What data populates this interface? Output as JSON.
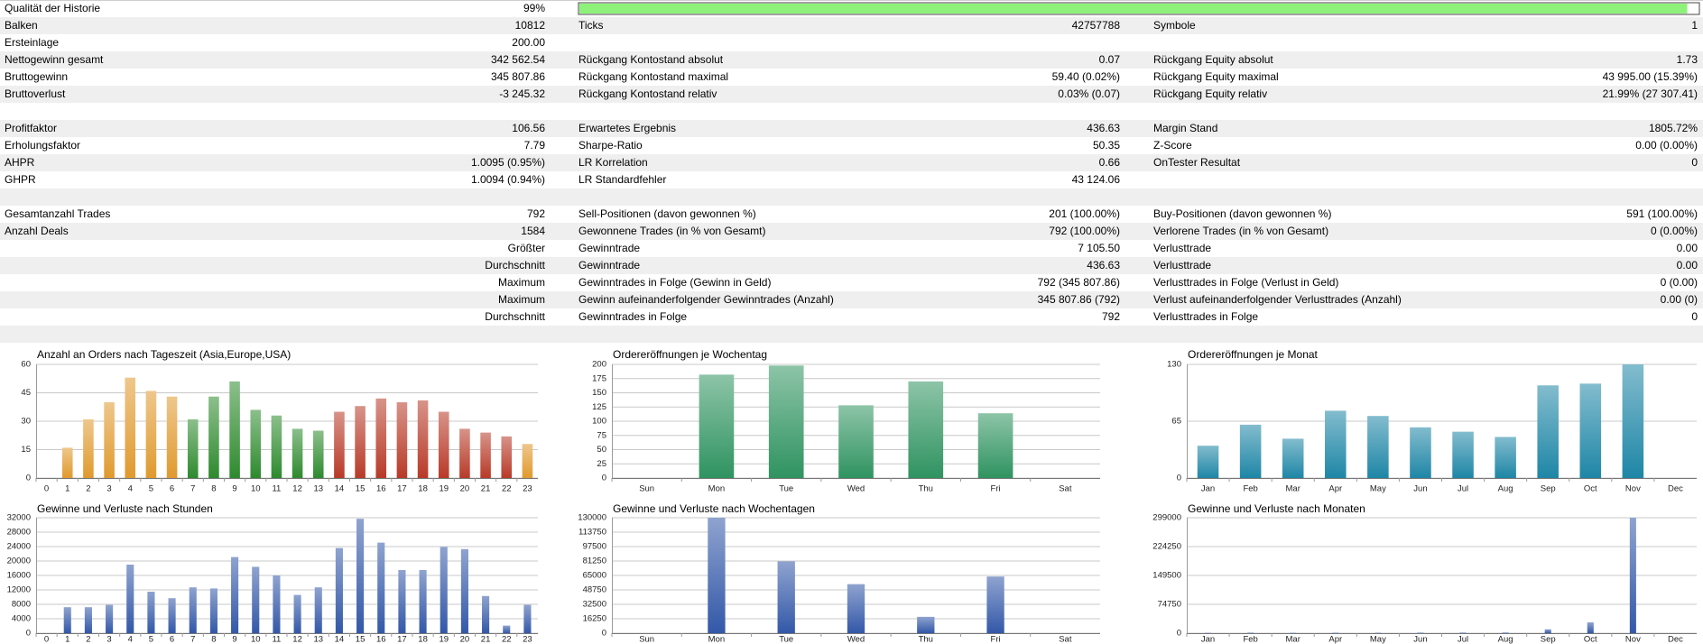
{
  "table": {
    "rows": [
      {
        "label": "Qualität der Historie",
        "value": "99%",
        "bar": 99
      },
      {
        "label": "Balken",
        "value": "10812",
        "label2": "Ticks",
        "value2": "42757788",
        "label3": "Symbole",
        "value3": "1"
      },
      {
        "label": "Ersteinlage",
        "value": "200.00"
      },
      {
        "label": "Nettogewinn gesamt",
        "value": "342 562.54",
        "label2": "Rückgang Kontostand absolut",
        "value2": "0.07",
        "label3": "Rückgang Equity absolut",
        "value3": "1.73"
      },
      {
        "label": "Bruttogewinn",
        "value": "345 807.86",
        "label2": "Rückgang Kontostand maximal",
        "value2": "59.40 (0.02%)",
        "label3": "Rückgang Equity maximal",
        "value3": "43 995.00 (15.39%)"
      },
      {
        "label": "Bruttoverlust",
        "value": "-3 245.32",
        "label2": "Rückgang Kontostand relativ",
        "value2": "0.03% (0.07)",
        "label3": "Rückgang Equity relativ",
        "value3": "21.99% (27 307.41)"
      },
      {},
      {
        "label": "Profitfaktor",
        "value": "106.56",
        "label2": "Erwartetes Ergebnis",
        "value2": "436.63",
        "label3": "Margin Stand",
        "value3": "1805.72%"
      },
      {
        "label": "Erholungsfaktor",
        "value": "7.79",
        "label2": "Sharpe-Ratio",
        "value2": "50.35",
        "label3": "Z-Score",
        "value3": "0.00 (0.00%)"
      },
      {
        "label": "AHPR",
        "value": "1.0095 (0.95%)",
        "label2": "LR Korrelation",
        "value2": "0.66",
        "label3": "OnTester Resultat",
        "value3": "0"
      },
      {
        "label": "GHPR",
        "value": "1.0094 (0.94%)",
        "label2": "LR Standardfehler",
        "value2": "43 124.06"
      },
      {},
      {
        "label": "Gesamtanzahl Trades",
        "value": "792",
        "label2": "Sell-Positionen (davon gewonnen %)",
        "value2": "201 (100.00%)",
        "label3": "Buy-Positionen (davon gewonnen %)",
        "value3": "591 (100.00%)"
      },
      {
        "label": "Anzahl Deals",
        "value": "1584",
        "label2": "Gewonnene Trades (in % von Gesamt)",
        "value2": "792 (100.00%)",
        "label3": "Verlorene Trades (in % von Gesamt)",
        "value3": "0 (0.00%)"
      },
      {
        "qualifier": "Größter",
        "label2": "Gewinntrade",
        "value2": "7 105.50",
        "label3": "Verlusttrade",
        "value3": "0.00"
      },
      {
        "qualifier": "Durchschnitt",
        "label2": "Gewinntrade",
        "value2": "436.63",
        "label3": "Verlusttrade",
        "value3": "0.00"
      },
      {
        "qualifier": "Maximum",
        "label2": "Gewinntrades in Folge (Gewinn in Geld)",
        "value2": "792 (345 807.86)",
        "label3": "Verlusttrades in Folge (Verlust in Geld)",
        "value3": "0 (0.00)"
      },
      {
        "qualifier": "Maximum",
        "label2": "Gewinn aufeinanderfolgender Gewinntrades (Anzahl)",
        "value2": "345 807.86 (792)",
        "label3": "Verlust aufeinanderfolgender Verlusttrades (Anzahl)",
        "value3": "0.00 (0)"
      },
      {
        "qualifier": "Durchschnitt",
        "label2": "Gewinntrades in Folge",
        "value2": "792",
        "label3": "Verlusttrades in Folge",
        "value3": "0"
      },
      {}
    ]
  },
  "chart_data": [
    {
      "type": "bar",
      "title": "Anzahl an Orders nach Tageszeit (Asia,Europe,USA)",
      "categories": [
        0,
        1,
        2,
        3,
        4,
        5,
        6,
        7,
        8,
        9,
        10,
        11,
        12,
        13,
        14,
        15,
        16,
        17,
        18,
        19,
        20,
        21,
        22,
        23
      ],
      "values": [
        0,
        16,
        31,
        40,
        53,
        46,
        43,
        31,
        43,
        51,
        36,
        33,
        26,
        25,
        35,
        38,
        42,
        40,
        41,
        35,
        26,
        24,
        22,
        18
      ],
      "bar_colors": [
        "#e09a2e",
        "#e09a2e",
        "#e09a2e",
        "#e09a2e",
        "#e09a2e",
        "#e09a2e",
        "#e09a2e",
        "#2e8a2e",
        "#2e8a2e",
        "#2e8a2e",
        "#2e8a2e",
        "#2e8a2e",
        "#2e8a2e",
        "#2e8a2e",
        "#b83a28",
        "#b83a28",
        "#b83a28",
        "#b83a28",
        "#b83a28",
        "#b83a28",
        "#b83a28",
        "#b83a28",
        "#b83a28",
        "#e09a2e"
      ],
      "ylim": [
        0,
        60
      ],
      "yticks": [
        0,
        15,
        30,
        45,
        60
      ],
      "grid": true
    },
    {
      "type": "bar",
      "title": "Ordereröffnungen je Wochentag",
      "categories": [
        "Sun",
        "Mon",
        "Tue",
        "Wed",
        "Thu",
        "Fri",
        "Sat"
      ],
      "values": [
        0,
        182,
        198,
        128,
        170,
        114,
        0
      ],
      "color": "#2f9360",
      "ylim": [
        0,
        200
      ],
      "yticks": [
        0,
        25,
        50,
        75,
        100,
        125,
        150,
        175,
        200
      ],
      "grid": true
    },
    {
      "type": "bar",
      "title": "Ordereröffnungen je Monat",
      "categories": [
        "Jan",
        "Feb",
        "Mar",
        "Apr",
        "May",
        "Jun",
        "Jul",
        "Aug",
        "Sep",
        "Oct",
        "Nov",
        "Dec"
      ],
      "values": [
        37,
        61,
        45,
        77,
        71,
        58,
        53,
        47,
        106,
        108,
        130,
        0
      ],
      "color": "#1e86a6",
      "ylim": [
        0,
        130
      ],
      "yticks": [
        0,
        65,
        130
      ],
      "grid": true
    },
    {
      "type": "bar",
      "title": "Gewinne und Verluste nach Stunden",
      "categories": [
        0,
        1,
        2,
        3,
        4,
        5,
        6,
        7,
        8,
        9,
        10,
        11,
        12,
        13,
        14,
        15,
        16,
        17,
        18,
        19,
        20,
        21,
        22,
        23
      ],
      "values": [
        0,
        7200,
        7200,
        7850,
        19000,
        11500,
        9700,
        12700,
        12400,
        21100,
        18400,
        16000,
        10600,
        12700,
        23600,
        31700,
        25100,
        17500,
        17500,
        23900,
        23300,
        10300,
        2100,
        7850
      ],
      "color": "#3358a8",
      "ylim": [
        0,
        32000
      ],
      "yticks": [
        0,
        4000,
        8000,
        12000,
        16000,
        20000,
        24000,
        28000,
        32000
      ],
      "grid": true
    },
    {
      "type": "bar",
      "title": "Gewinne und Verluste nach Wochentagen",
      "categories": [
        "Sun",
        "Mon",
        "Tue",
        "Wed",
        "Thu",
        "Fri",
        "Sat"
      ],
      "values": [
        0,
        130000,
        80900,
        55200,
        18400,
        63800,
        0
      ],
      "color": "#3358a8",
      "ylim": [
        0,
        130000
      ],
      "yticks": [
        0,
        16250,
        32500,
        48750,
        65000,
        81250,
        97500,
        113750,
        130000
      ],
      "grid": true
    },
    {
      "type": "bar",
      "title": "Gewinne und Verluste nach Monaten",
      "categories": [
        "Jan",
        "Feb",
        "Mar",
        "Apr",
        "May",
        "Jun",
        "Jul",
        "Aug",
        "Sep",
        "Oct",
        "Nov",
        "Dec"
      ],
      "values": [
        800,
        1200,
        900,
        1100,
        1000,
        1300,
        1400,
        1600,
        10000,
        28000,
        299000,
        0
      ],
      "color": "#3358a8",
      "ylim": [
        0,
        299000
      ],
      "yticks": [
        0,
        74750,
        149500,
        224250,
        299000
      ],
      "grid": true
    }
  ]
}
